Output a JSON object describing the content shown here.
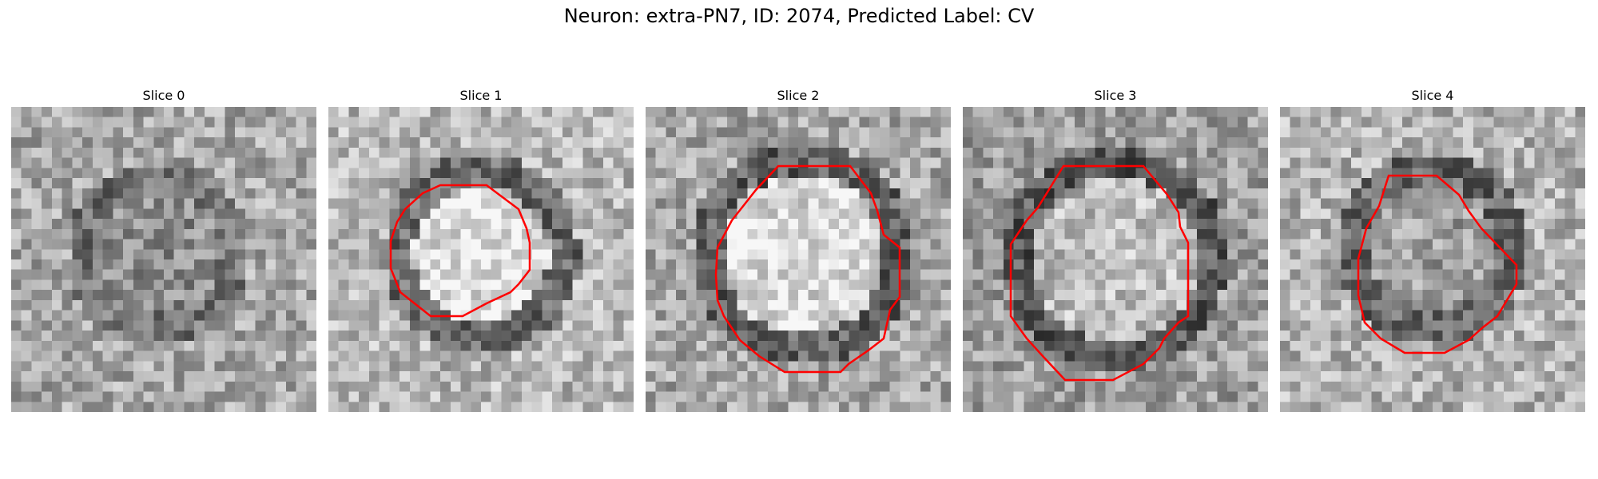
{
  "figure": {
    "title": "Neuron: extra-PN7, ID: 2074, Predicted Label: CV"
  },
  "panels": [
    {
      "title": "Slice 0",
      "contour": false
    },
    {
      "title": "Slice 1",
      "contour": true
    },
    {
      "title": "Slice 2",
      "contour": true
    },
    {
      "title": "Slice 3",
      "contour": true
    },
    {
      "title": "Slice 4",
      "contour": true
    }
  ],
  "colors": {
    "contour": "#ff0000",
    "background": "#ffffff"
  },
  "colormap": "grayscale"
}
